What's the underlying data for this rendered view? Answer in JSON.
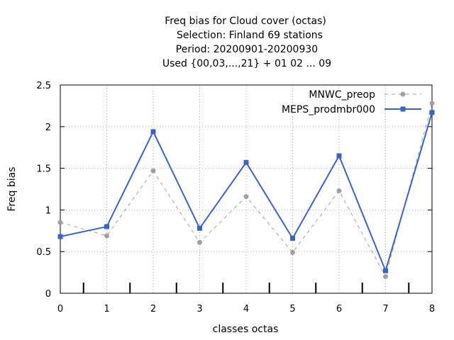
{
  "chart_data": {
    "type": "line",
    "title_lines": [
      "Freq bias  for Cloud cover (octas)",
      "Selection: Finland     69 stations",
      "Period: 20200901-20200930",
      "Used {00,03,...,21} + 01 02 ... 09"
    ],
    "xlabel": "classes octas",
    "ylabel": "Freq bias",
    "x": [
      0,
      1,
      2,
      3,
      4,
      5,
      6,
      7,
      8
    ],
    "xlim": [
      0,
      8
    ],
    "ylim": [
      0,
      2.5
    ],
    "x_ticks": [
      "0",
      "1",
      "2",
      "3",
      "4",
      "5",
      "6",
      "7",
      "8"
    ],
    "y_ticks": [
      "0",
      "0.5",
      "1",
      "1.5",
      "2",
      "2.5"
    ],
    "grid": true,
    "legend_position": "top-right",
    "series": [
      {
        "name": "MNWC_preop",
        "color": "#a0a0a0",
        "style": "dashed",
        "marker": "circle",
        "values": [
          0.85,
          0.69,
          1.47,
          0.61,
          1.16,
          0.49,
          1.23,
          0.2,
          2.28
        ]
      },
      {
        "name": "MEPS_prodmbr000",
        "color": "#3a62c8",
        "style": "solid",
        "marker": "square",
        "values": [
          0.68,
          0.8,
          1.94,
          0.78,
          1.57,
          0.66,
          1.65,
          0.27,
          2.17
        ]
      }
    ]
  }
}
